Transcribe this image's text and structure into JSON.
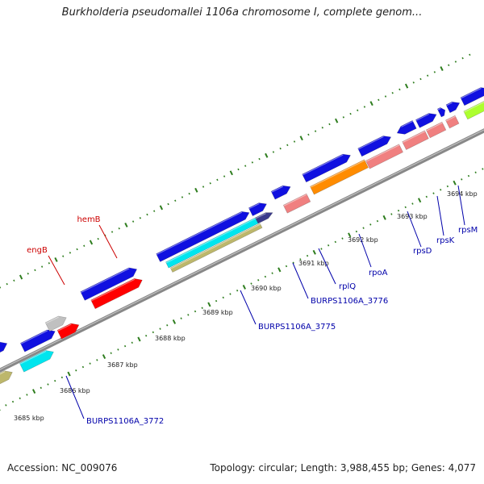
{
  "title": "Burkholderia pseudomallei 1106a chromosome I, complete genom...",
  "footer": {
    "accession": "Accession: NC_009076",
    "summary": "Topology: circular; Length: 3,988,455 bp; Genes: 4,077"
  },
  "colors": {
    "backbone": "#888888",
    "tick": "#2e7d1e",
    "label_red": "#cc0000",
    "label_blue": "#0000aa"
  },
  "ticks": [
    {
      "label": "3685 kbp"
    },
    {
      "label": "3686 kbp"
    },
    {
      "label": "3687 kbp"
    },
    {
      "label": "3688 kbp"
    },
    {
      "label": "3689 kbp"
    },
    {
      "label": "3690 kbp"
    },
    {
      "label": "3691 kbp"
    },
    {
      "label": "3692 kbp"
    },
    {
      "label": "3693 kbp"
    },
    {
      "label": "3694 kbp"
    }
  ],
  "gene_labels": [
    {
      "name": "engB",
      "color": "red"
    },
    {
      "name": "hemB",
      "color": "red"
    },
    {
      "name": "BURPS1106A_3772",
      "color": "blue"
    },
    {
      "name": "BURPS1106A_3775",
      "color": "blue"
    },
    {
      "name": "BURPS1106A_3776",
      "color": "blue"
    },
    {
      "name": "rplQ",
      "color": "blue"
    },
    {
      "name": "rpoA",
      "color": "blue"
    },
    {
      "name": "rpsD",
      "color": "blue"
    },
    {
      "name": "rpsK",
      "color": "blue"
    },
    {
      "name": "rpsM",
      "color": "blue"
    }
  ],
  "features": [
    {
      "name": "blue-cds",
      "color": "#1010e0"
    },
    {
      "name": "red-cds",
      "color": "#ff0000"
    },
    {
      "name": "gray-cds",
      "color": "#c0c0c0"
    },
    {
      "name": "cyan-cds",
      "color": "#00e5ee"
    },
    {
      "name": "olive-cds",
      "color": "#bdb76b"
    },
    {
      "name": "navy-cds",
      "color": "#3a3a8c"
    },
    {
      "name": "salmon-cds",
      "color": "#f08080"
    },
    {
      "name": "orange-cds",
      "color": "#ff8c00"
    },
    {
      "name": "green-cds",
      "color": "#adff2f"
    }
  ]
}
